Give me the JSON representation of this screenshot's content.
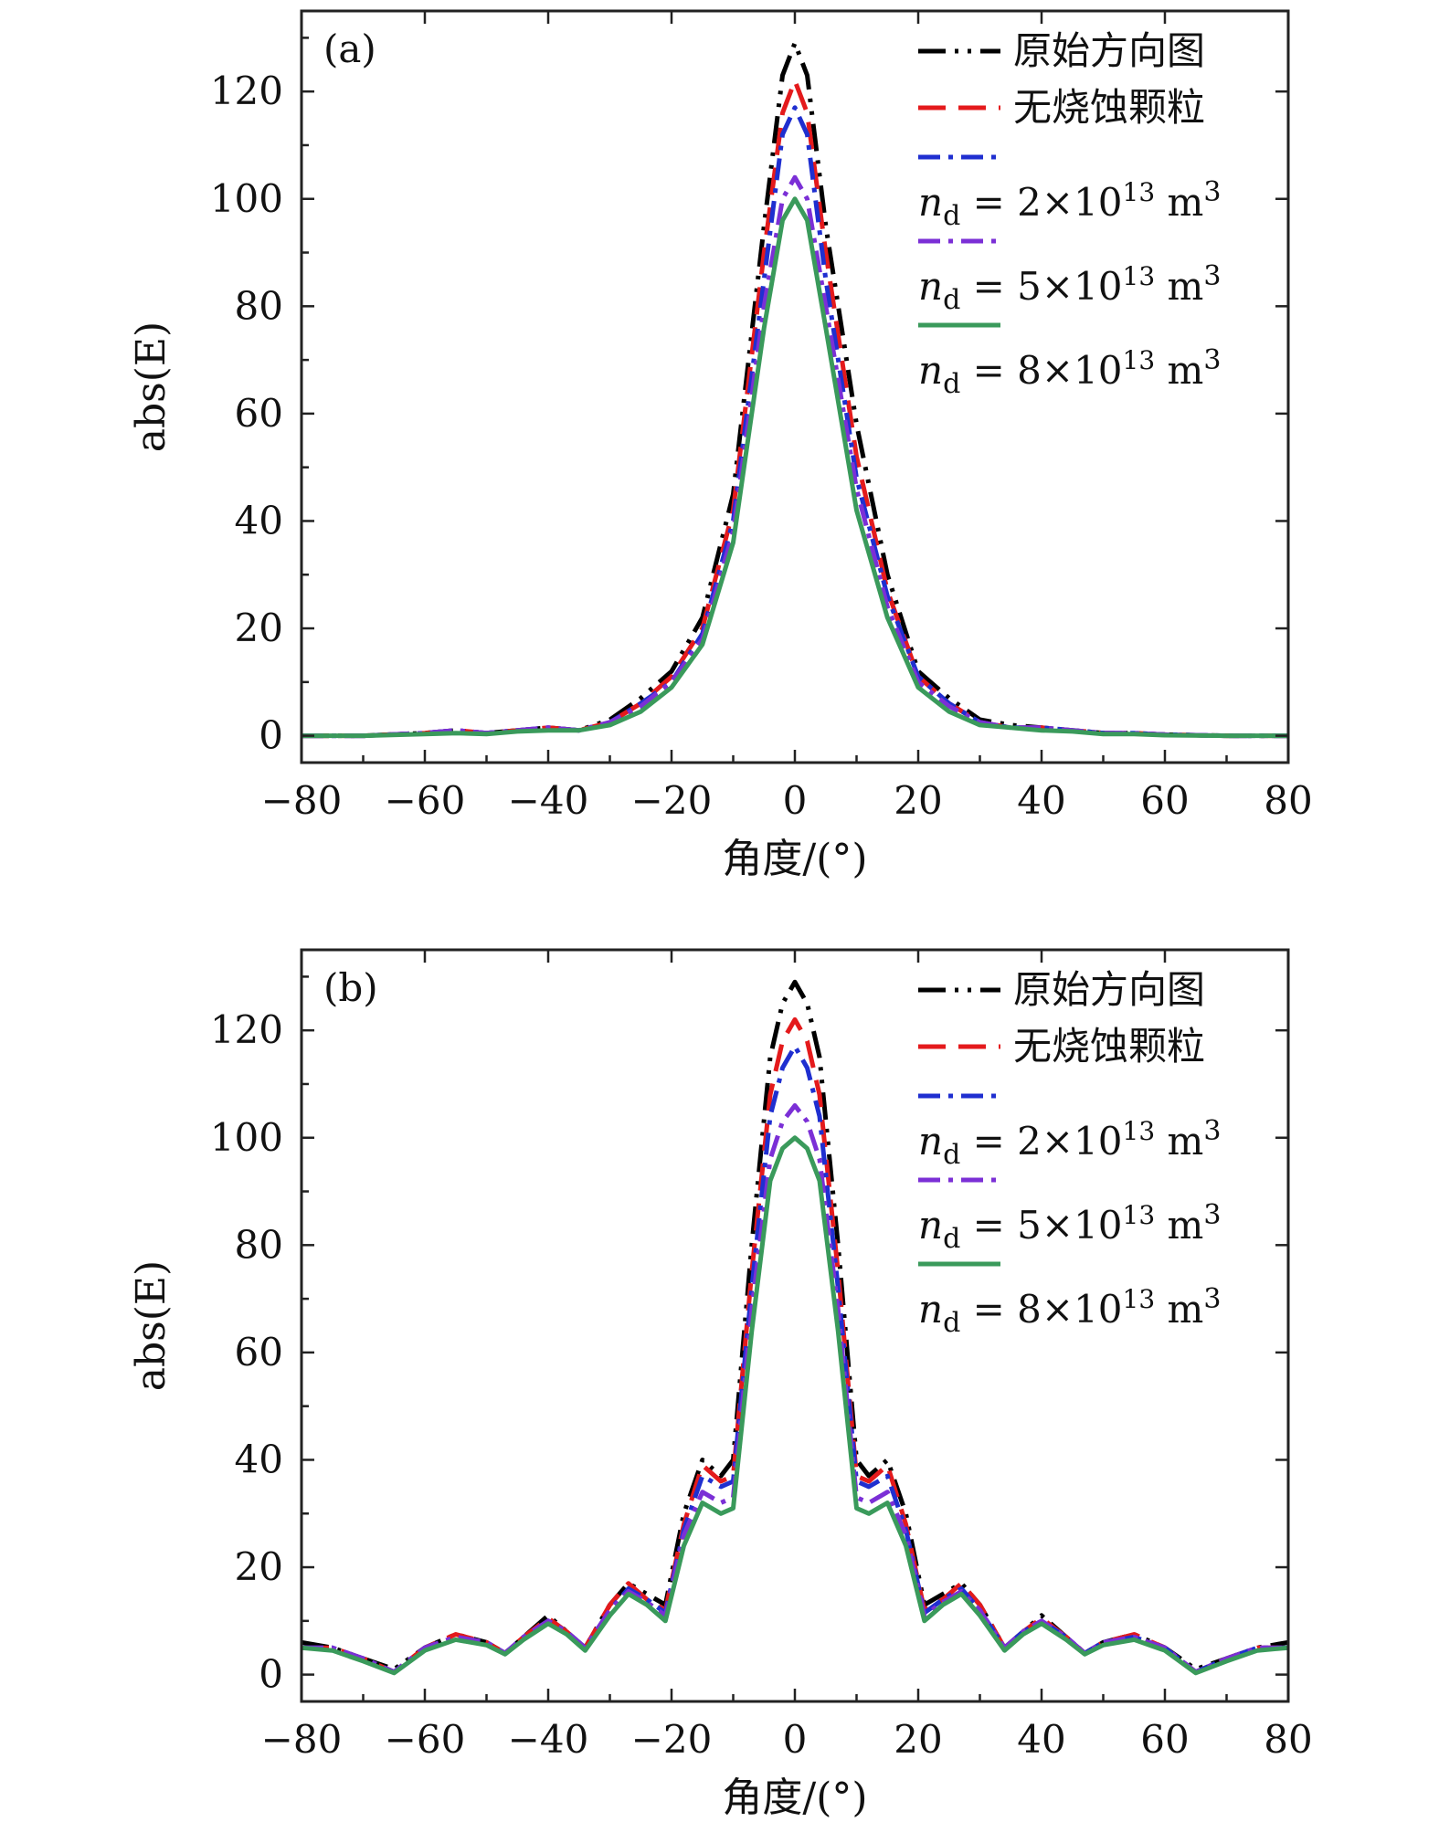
{
  "chart_data": [
    {
      "type": "line",
      "panel_label": "(a)",
      "xlabel": "角度/(°)",
      "ylabel": "abs(E)",
      "xlim": [
        -80,
        80
      ],
      "ylim": [
        -5,
        135
      ],
      "xticks": [
        -80,
        -60,
        -40,
        -20,
        0,
        20,
        40,
        60,
        80
      ],
      "xtick_labels": [
        "−80",
        "−60",
        "−40",
        "−20",
        "0",
        "20",
        "40",
        "60",
        "80"
      ],
      "yticks": [
        0,
        20,
        40,
        60,
        80,
        100,
        120
      ],
      "ytick_labels": [
        "0",
        "20",
        "40",
        "60",
        "80",
        "100",
        "120"
      ],
      "legend_position": "top-right",
      "series": [
        {
          "name": "原始方向图",
          "legend_lines": [
            "原始方向图"
          ],
          "color": "#000000",
          "dash": "dash-dot-dot",
          "x": [
            -80,
            -70,
            -60,
            -55,
            -50,
            -45,
            -40,
            -35,
            -30,
            -25,
            -20,
            -15,
            -10,
            -5,
            -2,
            0,
            2,
            5,
            10,
            15,
            20,
            25,
            30,
            35,
            40,
            45,
            50,
            55,
            60,
            70,
            80
          ],
          "y": [
            0,
            0,
            0.5,
            1,
            0.5,
            1,
            1.5,
            1,
            3,
            7,
            12,
            22,
            45,
            95,
            123,
            129,
            123,
            95,
            58,
            30,
            12,
            7,
            3,
            2,
            1.5,
            1,
            0.5,
            0.5,
            0.2,
            0,
            0
          ]
        },
        {
          "name": "无烧蚀颗粒",
          "legend_lines": [
            "无烧蚀颗粒"
          ],
          "color": "#e41a1c",
          "dash": "dash",
          "x": [
            -80,
            -70,
            -60,
            -55,
            -50,
            -45,
            -40,
            -35,
            -30,
            -25,
            -20,
            -15,
            -10,
            -5,
            -2,
            0,
            2,
            5,
            10,
            15,
            20,
            25,
            30,
            35,
            40,
            45,
            50,
            55,
            60,
            70,
            80
          ],
          "y": [
            0,
            0,
            0.5,
            1,
            0.5,
            1,
            1.5,
            1,
            2.5,
            6,
            11,
            20,
            42,
            90,
            116,
            122,
            116,
            90,
            52,
            27,
            11,
            6,
            2.5,
            1.5,
            1.5,
            1,
            0.5,
            0.5,
            0.2,
            0,
            0
          ]
        },
        {
          "name": "nd = 2×10^13 m^3",
          "legend_lines": [
            "n",
            "d",
            " = 2×10",
            "13",
            " m",
            "3"
          ],
          "color": "#1f2fd0",
          "dash": "dash-dot",
          "x": [
            -80,
            -70,
            -60,
            -55,
            -50,
            -45,
            -40,
            -35,
            -30,
            -25,
            -20,
            -15,
            -10,
            -5,
            -2,
            0,
            2,
            5,
            10,
            15,
            20,
            25,
            30,
            35,
            40,
            45,
            50,
            55,
            60,
            70,
            80
          ],
          "y": [
            0,
            0,
            0.5,
            1,
            0.5,
            1,
            1.5,
            1,
            2.5,
            6,
            10,
            19,
            40,
            85,
            112,
            117,
            112,
            85,
            48,
            26,
            11,
            6,
            2.5,
            1.5,
            1.5,
            1,
            0.5,
            0.5,
            0.2,
            0,
            0
          ]
        },
        {
          "name": "nd = 5×10^13 m^3",
          "legend_lines": [
            "n",
            "d",
            " = 5×10",
            "13",
            " m",
            "3"
          ],
          "color": "#7b2fd6",
          "dash": "dash-dot",
          "x": [
            -80,
            -70,
            -60,
            -55,
            -50,
            -45,
            -40,
            -35,
            -30,
            -25,
            -20,
            -15,
            -10,
            -5,
            -2,
            0,
            2,
            5,
            10,
            15,
            20,
            25,
            30,
            35,
            40,
            45,
            50,
            55,
            60,
            70,
            80
          ],
          "y": [
            0,
            0,
            0.5,
            1,
            0.5,
            1,
            1.5,
            1,
            2.5,
            5.5,
            10,
            18,
            38,
            80,
            100,
            104,
            100,
            80,
            46,
            24,
            10,
            5.5,
            2.5,
            1.5,
            1.5,
            1,
            0.5,
            0.5,
            0.2,
            0,
            0
          ]
        },
        {
          "name": "nd = 8×10^13 m^3",
          "legend_lines": [
            "n",
            "d",
            " = 8×10",
            "13",
            " m",
            "3"
          ],
          "color": "#3a9a5b",
          "dash": "solid",
          "x": [
            -80,
            -70,
            -60,
            -55,
            -50,
            -45,
            -40,
            -35,
            -30,
            -25,
            -20,
            -15,
            -10,
            -5,
            -2,
            0,
            2,
            5,
            10,
            15,
            20,
            25,
            30,
            35,
            40,
            45,
            50,
            55,
            60,
            70,
            80
          ],
          "y": [
            0,
            0,
            0.3,
            0.5,
            0.3,
            0.8,
            1,
            1,
            2,
            4.5,
            9,
            17,
            36,
            76,
            96,
            100,
            96,
            76,
            42,
            22,
            9,
            4.5,
            2,
            1.5,
            1,
            0.8,
            0.3,
            0.3,
            0.1,
            0,
            0
          ]
        }
      ]
    },
    {
      "type": "line",
      "panel_label": "(b)",
      "xlabel": "角度/(°)",
      "ylabel": "abs(E)",
      "xlim": [
        -80,
        80
      ],
      "ylim": [
        -5,
        135
      ],
      "xticks": [
        -80,
        -60,
        -40,
        -20,
        0,
        20,
        40,
        60,
        80
      ],
      "xtick_labels": [
        "−80",
        "−60",
        "−40",
        "−20",
        "0",
        "20",
        "40",
        "60",
        "80"
      ],
      "yticks": [
        0,
        20,
        40,
        60,
        80,
        100,
        120
      ],
      "ytick_labels": [
        "0",
        "20",
        "40",
        "60",
        "80",
        "100",
        "120"
      ],
      "legend_position": "top-right",
      "series": [
        {
          "name": "原始方向图",
          "legend_lines": [
            "原始方向图"
          ],
          "color": "#000000",
          "dash": "dash-dot-dot",
          "x": [
            -80,
            -75,
            -70,
            -65,
            -60,
            -55,
            -50,
            -47,
            -44,
            -40,
            -37,
            -34,
            -30,
            -27,
            -24,
            -21,
            -18,
            -15,
            -12,
            -10,
            -7,
            -4,
            -2,
            0,
            2,
            4,
            7,
            10,
            12,
            15,
            18,
            21,
            24,
            27,
            30,
            34,
            37,
            40,
            44,
            47,
            50,
            55,
            60,
            65,
            70,
            75,
            80
          ],
          "y": [
            6,
            5,
            3,
            1,
            5,
            7.5,
            6,
            4,
            7,
            11,
            8,
            5,
            13,
            17,
            15,
            13,
            30,
            40,
            37,
            40,
            80,
            115,
            125,
            129,
            125,
            115,
            80,
            40,
            37,
            40,
            30,
            13,
            15,
            17,
            13,
            5,
            8,
            11,
            7,
            4,
            6,
            7.5,
            5,
            1,
            3,
            5,
            6
          ]
        },
        {
          "name": "无烧蚀颗粒",
          "legend_lines": [
            "无烧蚀颗粒"
          ],
          "color": "#e41a1c",
          "dash": "dash",
          "x": [
            -80,
            -75,
            -70,
            -65,
            -60,
            -55,
            -50,
            -47,
            -44,
            -40,
            -37,
            -34,
            -30,
            -27,
            -24,
            -21,
            -18,
            -15,
            -12,
            -10,
            -7,
            -4,
            -2,
            0,
            2,
            4,
            7,
            10,
            12,
            15,
            18,
            21,
            24,
            27,
            30,
            34,
            37,
            40,
            44,
            47,
            50,
            55,
            60,
            65,
            70,
            75,
            80
          ],
          "y": [
            5,
            5,
            3,
            0.5,
            5,
            7.5,
            6,
            4,
            7,
            10.5,
            8,
            5,
            13,
            17,
            14,
            12,
            28,
            39,
            36,
            37,
            75,
            108,
            118,
            122,
            118,
            108,
            75,
            37,
            36,
            39,
            28,
            12,
            14,
            17,
            13,
            5,
            8,
            10.5,
            7,
            4,
            6,
            7.5,
            5,
            0.5,
            3,
            5,
            5
          ]
        },
        {
          "name": "nd = 2×10^13 m^3",
          "legend_lines": [
            "n",
            "d",
            " = 2×10",
            "13",
            " m",
            "3"
          ],
          "color": "#1f2fd0",
          "dash": "dash-dot",
          "x": [
            -80,
            -75,
            -70,
            -65,
            -60,
            -55,
            -50,
            -47,
            -44,
            -40,
            -37,
            -34,
            -30,
            -27,
            -24,
            -21,
            -18,
            -15,
            -12,
            -10,
            -7,
            -4,
            -2,
            0,
            2,
            4,
            7,
            10,
            12,
            15,
            18,
            21,
            24,
            27,
            30,
            34,
            37,
            40,
            44,
            47,
            50,
            55,
            60,
            65,
            70,
            75,
            80
          ],
          "y": [
            5,
            5,
            3,
            0.5,
            5,
            7,
            6,
            4,
            7,
            10,
            8,
            5,
            12,
            16,
            14,
            11.5,
            27,
            37,
            35,
            36,
            72,
            104,
            113,
            117,
            113,
            104,
            72,
            36,
            35,
            37,
            27,
            11.5,
            14,
            16,
            12,
            5,
            8,
            10,
            7,
            4,
            6,
            7,
            5,
            0.5,
            3,
            5,
            5
          ]
        },
        {
          "name": "nd = 5×10^13 m^3",
          "legend_lines": [
            "n",
            "d",
            " = 5×10",
            "13",
            " m",
            "3"
          ],
          "color": "#7b2fd6",
          "dash": "dash-dot",
          "x": [
            -80,
            -75,
            -70,
            -65,
            -60,
            -55,
            -50,
            -47,
            -44,
            -40,
            -37,
            -34,
            -30,
            -27,
            -24,
            -21,
            -18,
            -15,
            -12,
            -10,
            -7,
            -4,
            -2,
            0,
            2,
            4,
            7,
            10,
            12,
            15,
            18,
            21,
            24,
            27,
            30,
            34,
            37,
            40,
            44,
            47,
            50,
            55,
            60,
            65,
            70,
            75,
            80
          ],
          "y": [
            5,
            5,
            3,
            0.5,
            5,
            7,
            6,
            4,
            7,
            10,
            8,
            5,
            12,
            15.5,
            13.5,
            11,
            26,
            34,
            32,
            33,
            68,
            96,
            103,
            106,
            103,
            96,
            68,
            33,
            32,
            34,
            26,
            11,
            13.5,
            15.5,
            12,
            5,
            8,
            10,
            7,
            4,
            6,
            7,
            5,
            0.5,
            3,
            5,
            5
          ]
        },
        {
          "name": "nd = 8×10^13 m^3",
          "legend_lines": [
            "n",
            "d",
            " = 8×10",
            "13",
            " m",
            "3"
          ],
          "color": "#3a9a5b",
          "dash": "solid",
          "x": [
            -80,
            -75,
            -70,
            -65,
            -60,
            -55,
            -50,
            -47,
            -44,
            -40,
            -37,
            -34,
            -30,
            -27,
            -24,
            -21,
            -18,
            -15,
            -12,
            -10,
            -7,
            -4,
            -2,
            0,
            2,
            4,
            7,
            10,
            12,
            15,
            18,
            21,
            24,
            27,
            30,
            34,
            37,
            40,
            44,
            47,
            50,
            55,
            60,
            65,
            70,
            75,
            80
          ],
          "y": [
            5,
            4.5,
            2.5,
            0.3,
            4.5,
            6.5,
            5.5,
            3.8,
            6.5,
            9.5,
            7.5,
            4.5,
            11,
            15,
            13,
            10,
            24,
            32,
            30,
            31,
            64,
            92,
            98,
            100,
            98,
            92,
            64,
            31,
            30,
            32,
            24,
            10,
            13,
            15,
            11,
            4.5,
            7.5,
            9.5,
            6.5,
            3.8,
            5.5,
            6.5,
            4.5,
            0.3,
            2.5,
            4.5,
            5
          ]
        }
      ]
    }
  ]
}
